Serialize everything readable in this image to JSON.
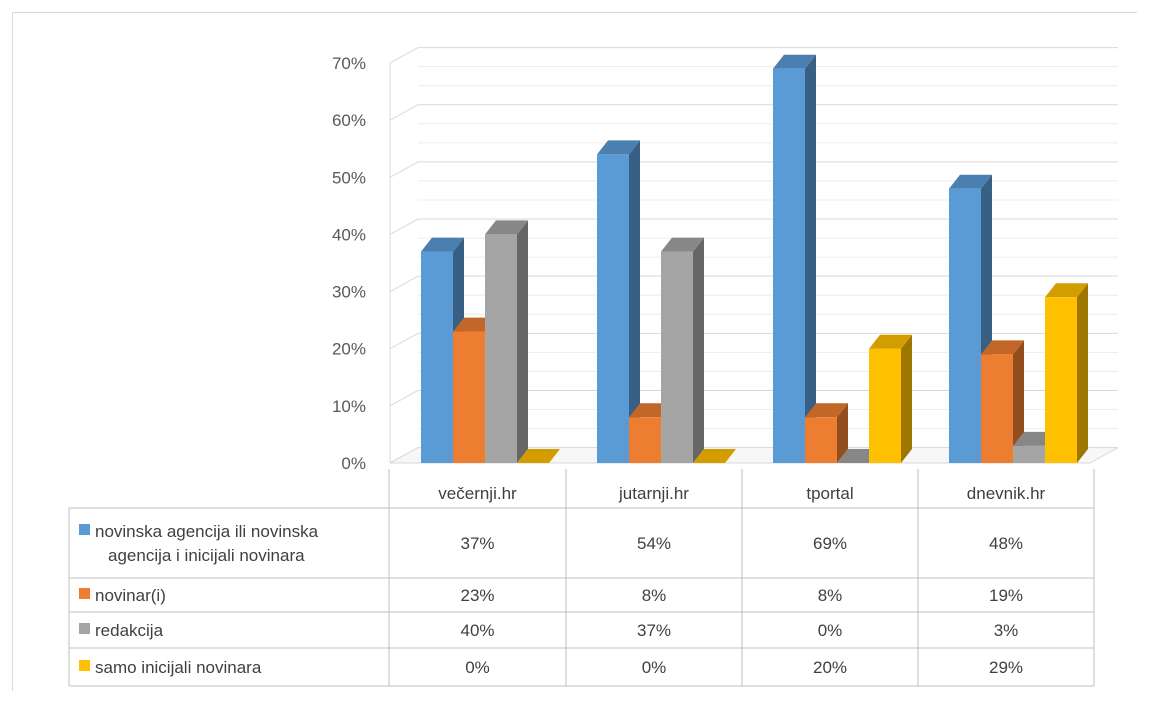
{
  "chart_data": {
    "type": "bar",
    "categories": [
      "večernji.hr",
      "jutarnji.hr",
      "tportal",
      "dnevnik.hr"
    ],
    "series": [
      {
        "name": "novinska agencija ili novinska agencija i inicijali novinara",
        "name_lines": [
          "novinska agencija ili novinska",
          "agencija i inicijali novinara"
        ],
        "color": "#5b9bd5",
        "values": [
          37,
          54,
          69,
          48
        ],
        "labels": [
          "37%",
          "54%",
          "69%",
          "48%"
        ]
      },
      {
        "name": "novinar(i)",
        "name_lines": [
          "novinar(i)"
        ],
        "color": "#ed7d31",
        "values": [
          23,
          8,
          8,
          19
        ],
        "labels": [
          "23%",
          "8%",
          "8%",
          "19%"
        ]
      },
      {
        "name": "redakcija",
        "name_lines": [
          "redakcija"
        ],
        "color": "#a5a5a5",
        "values": [
          40,
          37,
          0,
          3
        ],
        "labels": [
          "40%",
          "37%",
          "0%",
          "3%"
        ]
      },
      {
        "name": "samo inicijali novinara",
        "name_lines": [
          "samo inicijali novinara"
        ],
        "color": "#ffc000",
        "values": [
          0,
          0,
          20,
          29
        ],
        "labels": [
          "0%",
          "0%",
          "20%",
          "29%"
        ]
      }
    ],
    "y_ticks": [
      "0%",
      "10%",
      "20%",
      "30%",
      "40%",
      "50%",
      "60%",
      "70%"
    ],
    "ylim": [
      0,
      70
    ],
    "grid": true,
    "legend": "data-table",
    "style": "3d-clustered-column"
  }
}
